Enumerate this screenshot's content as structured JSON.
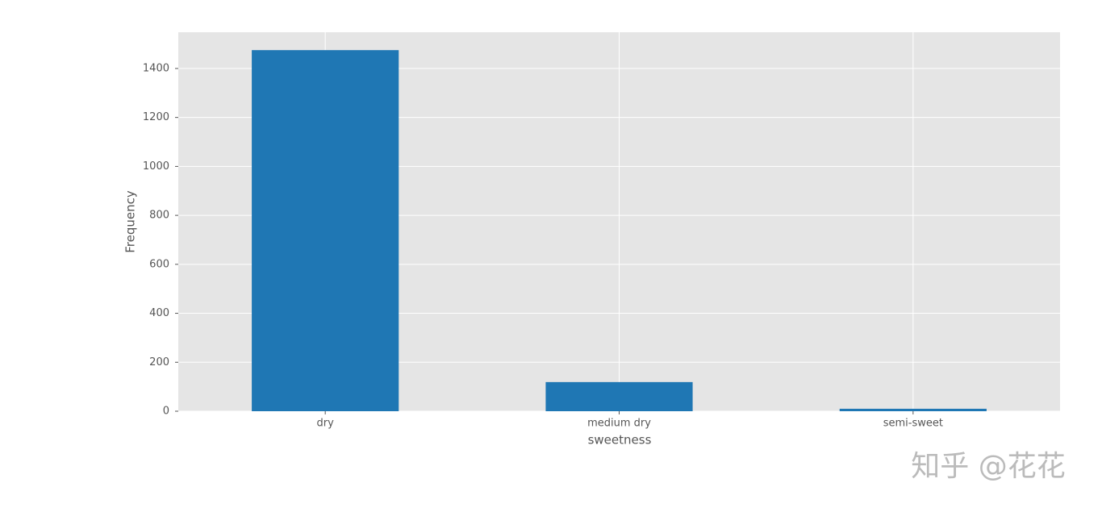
{
  "chart_data": {
    "type": "bar",
    "x_label": "sweetness",
    "y_label": "Frequency",
    "categories": [
      "dry",
      "medium dry",
      "semi-sweet"
    ],
    "values": [
      1475,
      119,
      10
    ],
    "color": "#1f77b4",
    "ylim": [
      0,
      1548
    ],
    "yticks": [
      0,
      200,
      400,
      600,
      800,
      1000,
      1200,
      1400
    ],
    "grid": true,
    "watermark": "知乎 @花花"
  }
}
